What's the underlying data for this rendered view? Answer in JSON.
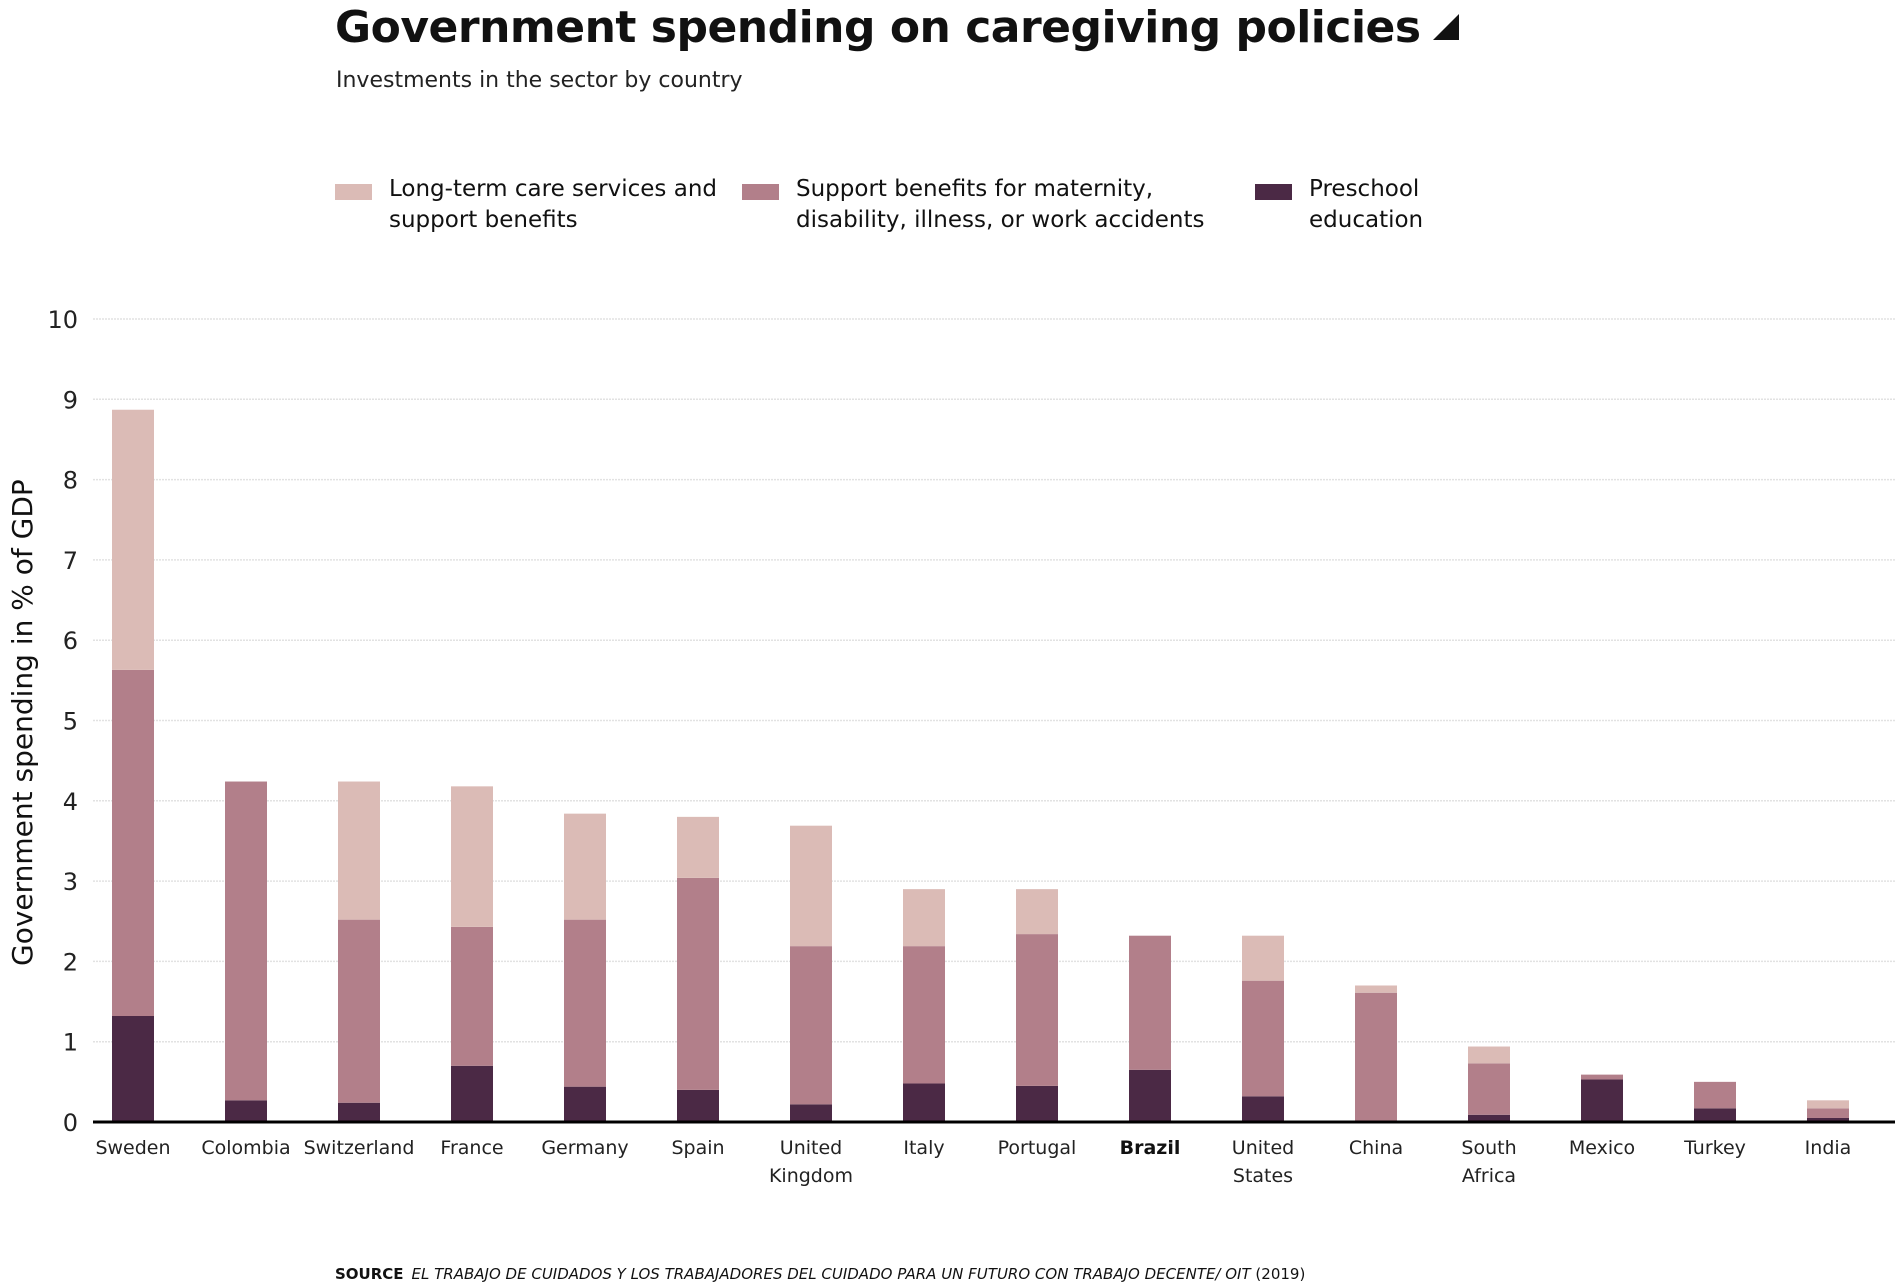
{
  "header": {
    "title": "Government spending on caregiving policies",
    "subtitle": "Investments in the sector by country"
  },
  "legend": [
    {
      "key": "longterm",
      "label": "Long-term care services and support benefits",
      "color": "#dbbbb6"
    },
    {
      "key": "support",
      "label": "Support benefits for maternity, disability, illness, or work accidents",
      "color": "#b27f8a"
    },
    {
      "key": "preschool",
      "label": "Preschool education",
      "color": "#4b2945"
    }
  ],
  "source": {
    "label": "SOURCE",
    "title": "EL TRABAJO DE CUIDADOS Y LOS TRABAJADORES DEL CUIDADO PARA UN FUTURO CON TRABAJO DECENTE/ OIT",
    "year": "(2019)"
  },
  "chart_data": {
    "type": "bar",
    "stacked": true,
    "title": "Government spending on caregiving policies",
    "subtitle": "Investments in the sector by country",
    "xlabel": "",
    "ylabel": "Government spending in % of GDP",
    "ylim": [
      0,
      10
    ],
    "yticks": [
      0,
      1,
      2,
      3,
      4,
      5,
      6,
      7,
      8,
      9,
      10
    ],
    "grid": true,
    "legend_position": "top",
    "highlight_category": "Brazil",
    "categories": [
      "Sweden",
      "Colombia",
      "Switzerland",
      "France",
      "Germany",
      "Spain",
      "United Kingdom",
      "Italy",
      "Portugal",
      "Brazil",
      "United States",
      "China",
      "South Africa",
      "Mexico",
      "Turkey",
      "India"
    ],
    "series": [
      {
        "name": "Preschool education",
        "key": "preschool",
        "color": "#4b2945",
        "values": [
          1.32,
          0.27,
          0.24,
          0.7,
          0.44,
          0.4,
          0.22,
          0.48,
          0.45,
          0.65,
          0.32,
          0.01,
          0.09,
          0.53,
          0.17,
          0.05
        ]
      },
      {
        "name": "Support benefits for maternity, disability, illness, or work accidents",
        "key": "support",
        "color": "#b27f8a",
        "values": [
          4.31,
          3.97,
          2.28,
          1.73,
          2.08,
          2.64,
          1.97,
          1.71,
          1.89,
          1.67,
          1.44,
          1.6,
          0.64,
          0.06,
          0.33,
          0.12
        ]
      },
      {
        "name": "Long-term care services and support benefits",
        "key": "longterm",
        "color": "#dbbbb6",
        "values": [
          3.24,
          0.0,
          1.72,
          1.75,
          1.32,
          0.76,
          1.5,
          0.71,
          0.56,
          0.0,
          0.56,
          0.09,
          0.21,
          0.0,
          0.0,
          0.1
        ]
      }
    ]
  }
}
